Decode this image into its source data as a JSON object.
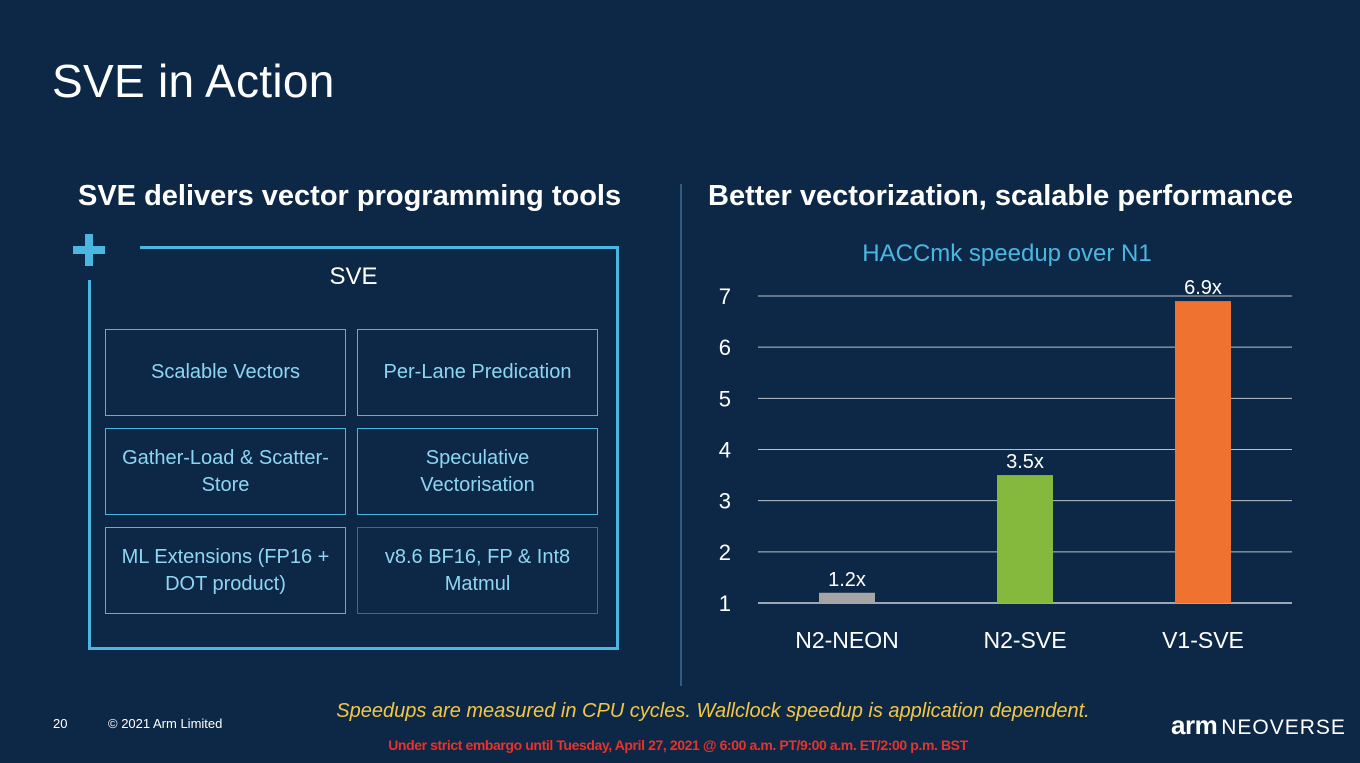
{
  "slide": {
    "title": "SVE in Action",
    "page_number": "20",
    "copyright": "© 2021 Arm Limited",
    "footnote": "Speedups are measured in CPU cycles.  Wallclock speedup is application dependent.",
    "embargo": "Under strict embargo until Tuesday, April 27, 2021 @ 6:00 a.m. PT/9:00 a.m. ET/2:00 p.m. BST",
    "logo": {
      "arm": "arm",
      "product": "NEOVERSE"
    }
  },
  "left": {
    "heading": "SVE delivers vector programming tools",
    "box_label": "SVE",
    "features": [
      "Scalable Vectors",
      "Per-Lane Predication",
      "Gather-Load & Scatter-Store",
      "Speculative Vectorisation",
      "ML Extensions (FP16 + DOT product)",
      "v8.6 BF16, FP & Int8 Matmul"
    ]
  },
  "right": {
    "heading": "Better vectorization, scalable performance"
  },
  "chart_data": {
    "type": "bar",
    "title": "HACCmk speedup over N1",
    "categories": [
      "N2-NEON",
      "N2-SVE",
      "V1-SVE"
    ],
    "values": [
      1.2,
      3.5,
      6.9
    ],
    "data_labels": [
      "1.2x",
      "3.5x",
      "6.9x"
    ],
    "colors": [
      "#a5a5a5",
      "#84b93e",
      "#ef7230"
    ],
    "yticks": [
      "1",
      "2",
      "3",
      "4",
      "5",
      "6",
      "7"
    ],
    "ylim": [
      1,
      7
    ],
    "grid": true,
    "legend": "none"
  },
  "colors": {
    "background": "#0d2846",
    "accent": "#4bb6e0",
    "feature_text": "#8dd6f3",
    "footnote": "#f2c744",
    "embargo": "#e8322c"
  }
}
